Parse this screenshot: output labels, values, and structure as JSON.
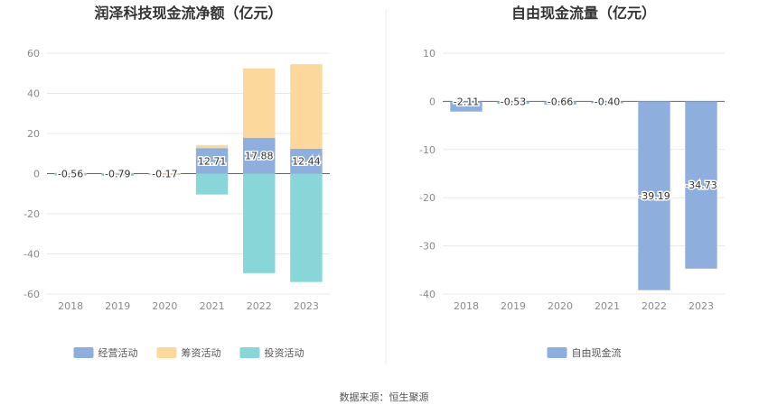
{
  "source_label": "数据来源：恒生聚源",
  "chart_data": [
    {
      "type": "bar",
      "stacked": true,
      "title": "润泽科技现金流净额（亿元）",
      "categories": [
        "2018",
        "2019",
        "2020",
        "2021",
        "2022",
        "2023"
      ],
      "ylim": [
        -60,
        60
      ],
      "yticks": [
        60,
        40,
        20,
        0,
        -20,
        -40,
        -60
      ],
      "grid": true,
      "legend_position": "bottom",
      "series": [
        {
          "name": "经营活动",
          "color": "#8eaedd",
          "values": [
            -0.56,
            -0.79,
            -0.17,
            12.71,
            17.88,
            12.44
          ]
        },
        {
          "name": "筹资活动",
          "color": "#fdd89d",
          "values": [
            0.5,
            0.4,
            0.2,
            1.5,
            34.6,
            42.1
          ]
        },
        {
          "name": "投资活动",
          "color": "#88d6d8",
          "values": [
            -0.3,
            -0.2,
            -0.1,
            -10.4,
            -49.6,
            -54.0
          ]
        }
      ],
      "data_labels": [
        "-0.56",
        "-0.79",
        "-0.17",
        "12.71",
        "17.88",
        "12.44"
      ]
    },
    {
      "type": "bar",
      "title": "自由现金流量（亿元）",
      "categories": [
        "2018",
        "2019",
        "2020",
        "2021",
        "2022",
        "2023"
      ],
      "ylim": [
        -40,
        10
      ],
      "yticks": [
        10,
        0,
        -10,
        -20,
        -30,
        -40
      ],
      "grid": true,
      "legend_position": "bottom",
      "series": [
        {
          "name": "自由现金流",
          "color": "#8eaedd",
          "values": [
            -2.11,
            -0.53,
            -0.66,
            -0.4,
            -39.19,
            -34.73
          ]
        }
      ],
      "data_labels": [
        "-2.11",
        "-0.53",
        "-0.66",
        "-0.40",
        "-39.19",
        "-34.73"
      ]
    }
  ]
}
